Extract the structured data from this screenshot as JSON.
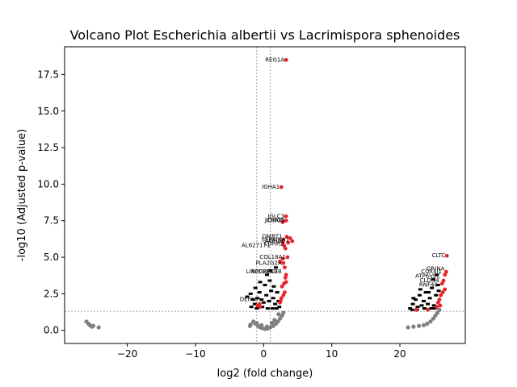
{
  "chart_data": {
    "type": "scatter",
    "title": "Volcano Plot Escherichia albertii vs Lacrimispora sphenoides",
    "xlabel": "log2 (fold change)",
    "ylabel": "-log10 (Adjusted p-value)",
    "xlim": [
      -29.2,
      29.6
    ],
    "ylim": [
      -0.9,
      19.4
    ],
    "xticks": [
      -20,
      -10,
      0,
      10,
      20
    ],
    "yticks": [
      0.0,
      2.5,
      5.0,
      7.5,
      10.0,
      12.5,
      15.0,
      17.5
    ],
    "xtick_labels": [
      "−20",
      "−10",
      "0",
      "10",
      "20"
    ],
    "ytick_labels": [
      "0.0",
      "2.5",
      "5.0",
      "7.5",
      "10.0",
      "12.5",
      "15.0",
      "17.5"
    ],
    "thresholds": {
      "fold_change": [
        -1,
        1
      ],
      "neg_log10_p": 1.3
    },
    "grid": false,
    "colors": {
      "significant": "#e8242a",
      "non_significant": "#808080",
      "threshold_line": "#888888"
    },
    "series": [
      {
        "values": [
          [
            -26.0,
            0.6
          ],
          [
            -25.7,
            0.45
          ],
          [
            -25.5,
            0.35
          ],
          [
            -25.2,
            0.25
          ],
          [
            -25.0,
            0.3
          ],
          [
            -24.2,
            0.2
          ],
          [
            21.2,
            0.2
          ],
          [
            22.0,
            0.25
          ],
          [
            22.8,
            0.3
          ],
          [
            23.5,
            0.35
          ],
          [
            24.0,
            0.45
          ],
          [
            24.5,
            0.6
          ],
          [
            24.9,
            0.8
          ],
          [
            25.2,
            1.0
          ],
          [
            25.5,
            1.2
          ],
          [
            25.8,
            1.4
          ],
          [
            -1.5,
            0.6
          ],
          [
            -1.2,
            0.45
          ],
          [
            -0.8,
            0.3
          ],
          [
            -0.5,
            0.2
          ],
          [
            -0.2,
            0.15
          ],
          [
            0.2,
            0.1
          ],
          [
            0.6,
            0.12
          ],
          [
            1.0,
            0.2
          ],
          [
            1.4,
            0.3
          ],
          [
            1.8,
            0.45
          ],
          [
            2.1,
            0.6
          ],
          [
            2.4,
            0.8
          ],
          [
            2.7,
            1.0
          ],
          [
            2.9,
            1.2
          ],
          [
            -1.9,
            0.4
          ],
          [
            -2.0,
            0.3
          ],
          [
            -1.0,
            0.5
          ],
          [
            -0.3,
            0.35
          ],
          [
            0.5,
            0.25
          ],
          [
            1.2,
            0.5
          ],
          [
            1.6,
            0.7
          ],
          [
            2.2,
            1.1
          ]
        ]
      },
      {
        "values": [
          [
            3.3,
            18.5
          ],
          [
            2.6,
            9.8
          ],
          [
            3.3,
            7.8
          ],
          [
            3.3,
            7.5
          ],
          [
            2.8,
            7.4
          ],
          [
            2.9,
            6.2
          ],
          [
            3.4,
            6.4
          ],
          [
            3.9,
            6.3
          ],
          [
            4.2,
            6.1
          ],
          [
            2.8,
            6.0
          ],
          [
            3.6,
            6.0
          ],
          [
            3.0,
            5.8
          ],
          [
            3.2,
            5.6
          ],
          [
            3.5,
            5.0
          ],
          [
            2.8,
            4.9
          ],
          [
            2.4,
            4.7
          ],
          [
            2.9,
            4.6
          ],
          [
            3.1,
            4.3
          ],
          [
            3.3,
            3.8
          ],
          [
            3.2,
            3.6
          ],
          [
            3.3,
            3.3
          ],
          [
            3.0,
            3.2
          ],
          [
            2.7,
            3.0
          ],
          [
            3.1,
            2.6
          ],
          [
            2.9,
            2.4
          ],
          [
            2.6,
            2.2
          ],
          [
            2.5,
            2.0
          ],
          [
            2.4,
            1.9
          ],
          [
            -0.6,
            1.8
          ],
          [
            -0.5,
            1.6
          ],
          [
            -0.9,
            1.7
          ],
          [
            26.9,
            5.1
          ],
          [
            26.8,
            4.0
          ],
          [
            26.6,
            3.8
          ],
          [
            26.4,
            3.4
          ],
          [
            26.2,
            3.2
          ],
          [
            26.6,
            2.8
          ],
          [
            26.3,
            2.6
          ],
          [
            26.0,
            2.4
          ],
          [
            25.8,
            2.1
          ],
          [
            25.6,
            1.9
          ],
          [
            25.9,
            1.7
          ],
          [
            25.4,
            1.6
          ],
          [
            24.1,
            1.4
          ],
          [
            22.4,
            1.4
          ]
        ]
      }
    ],
    "black_markers": [
      [
        -2.4,
        2.3
      ],
      [
        -1.9,
        2.5
      ],
      [
        -1.6,
        2.1
      ],
      [
        -1.3,
        1.8
      ],
      [
        -1.2,
        2.9
      ],
      [
        -0.9,
        2.2
      ],
      [
        -0.6,
        2.6
      ],
      [
        -0.3,
        2.1
      ],
      [
        0.0,
        1.9
      ],
      [
        0.4,
        2.4
      ],
      [
        0.8,
        2.0
      ],
      [
        1.1,
        2.7
      ],
      [
        1.4,
        2.2
      ],
      [
        1.7,
        1.8
      ],
      [
        2.0,
        2.6
      ],
      [
        2.2,
        2.0
      ],
      [
        -1.8,
        1.6
      ],
      [
        -1.0,
        1.5
      ],
      [
        -0.2,
        1.6
      ],
      [
        0.6,
        1.5
      ],
      [
        1.3,
        1.5
      ],
      [
        1.9,
        1.5
      ],
      [
        2.3,
        1.6
      ],
      [
        0.2,
        3.1
      ],
      [
        0.9,
        3.4
      ],
      [
        1.5,
        3.0
      ],
      [
        -0.5,
        3.3
      ],
      [
        1.0,
        4.1
      ],
      [
        1.8,
        4.3
      ],
      [
        0.5,
        3.8
      ],
      [
        21.5,
        1.5
      ],
      [
        21.9,
        1.8
      ],
      [
        22.3,
        2.1
      ],
      [
        22.6,
        1.6
      ],
      [
        22.9,
        2.4
      ],
      [
        23.2,
        1.7
      ],
      [
        23.5,
        2.0
      ],
      [
        23.8,
        2.6
      ],
      [
        24.1,
        1.8
      ],
      [
        24.4,
        2.2
      ],
      [
        24.7,
        2.9
      ],
      [
        25.0,
        1.7
      ],
      [
        25.3,
        2.4
      ],
      [
        25.6,
        3.1
      ],
      [
        24.9,
        3.5
      ],
      [
        25.4,
        3.8
      ],
      [
        23.0,
        2.8
      ],
      [
        24.2,
        2.6
      ],
      [
        21.8,
        1.4
      ],
      [
        22.5,
        1.4
      ],
      [
        23.6,
        1.5
      ],
      [
        24.6,
        1.5
      ],
      [
        25.1,
        1.5
      ],
      [
        25.7,
        2.7
      ],
      [
        22.0,
        2.2
      ]
    ],
    "annotations": [
      {
        "text": "REG1A",
        "x": 3.3,
        "y": 18.5
      },
      {
        "text": "IGHA1",
        "x": 2.6,
        "y": 9.8
      },
      {
        "text": "IGLC3",
        "x": 3.3,
        "y": 7.8
      },
      {
        "text": "JCHAIN",
        "x": 3.3,
        "y": 7.5
      },
      {
        "text": "IGHG2",
        "x": 3.3,
        "y": 7.5
      },
      {
        "text": "DMBT1",
        "x": 3.0,
        "y": 6.4
      },
      {
        "text": "SERPINA1",
        "x": 4.0,
        "y": 6.2
      },
      {
        "text": "ADH1C",
        "x": 3.4,
        "y": 6.1
      },
      {
        "text": "AL627171",
        "x": 1.2,
        "y": 5.8
      },
      {
        "text": "CDHR2",
        "x": 3.2,
        "y": 5.9
      },
      {
        "text": "COL18A1",
        "x": 3.5,
        "y": 5.0
      },
      {
        "text": "PLA2G2A",
        "x": 2.9,
        "y": 4.6
      },
      {
        "text": "LINC02040",
        "x": 2.2,
        "y": 4.0
      },
      {
        "text": "APOBEC3B",
        "x": 2.9,
        "y": 4.0
      },
      {
        "text": "DEFA6",
        "x": -0.6,
        "y": 2.1
      },
      {
        "text": "CLTC",
        "x": 26.9,
        "y": 5.1
      },
      {
        "text": "GRINA",
        "x": 26.8,
        "y": 4.2
      },
      {
        "text": "COX4I1",
        "x": 26.4,
        "y": 4.0
      },
      {
        "text": "ATP6V0C",
        "x": 26.2,
        "y": 3.7
      },
      {
        "text": "CLDN4",
        "x": 26.0,
        "y": 3.4
      },
      {
        "text": "RNF40",
        "x": 25.8,
        "y": 3.1
      }
    ]
  }
}
